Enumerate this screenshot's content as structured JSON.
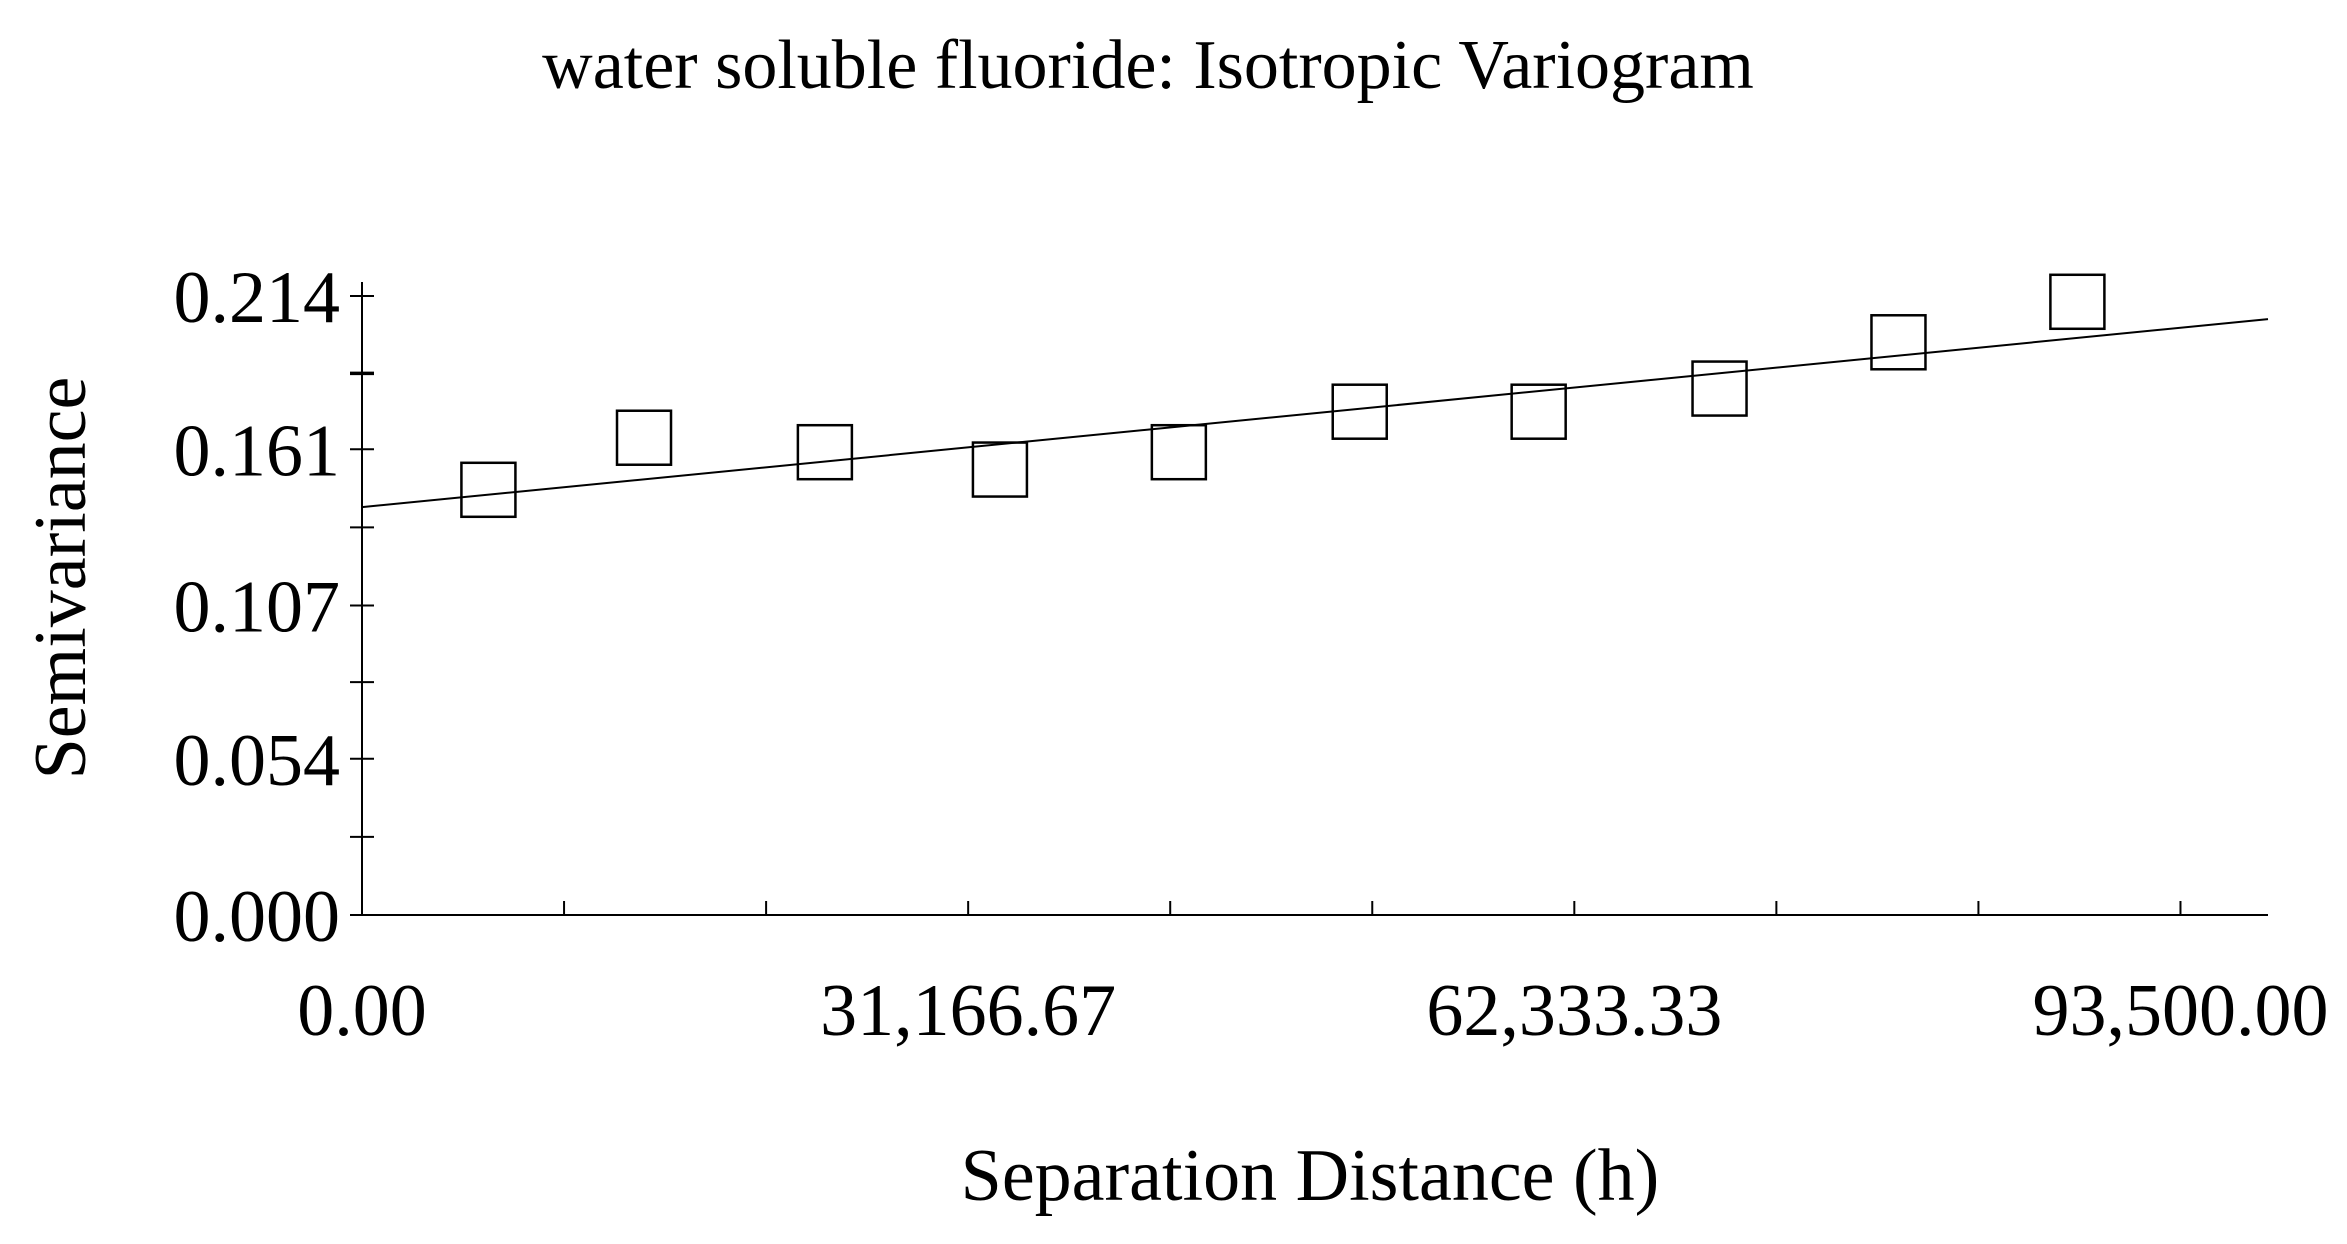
{
  "chart_data": {
    "type": "scatter",
    "title": "water soluble fluoride: Isotropic Variogram",
    "xlabel": "Separation Distance (h)",
    "ylabel": "Semivariance",
    "xlim": [
      0,
      98000
    ],
    "ylim": [
      0,
      0.214
    ],
    "x_ticks": [
      0,
      31166.67,
      62333.33,
      93500.0
    ],
    "x_tick_labels": [
      "0.00",
      "31,166.67",
      "62,333.33",
      "93,500.00"
    ],
    "y_ticks": [
      0,
      0.054,
      0.107,
      0.161,
      0.214
    ],
    "y_tick_labels": [
      "0.000",
      "0.054",
      "0.107",
      "0.161",
      "0.214"
    ],
    "grid": false,
    "series": [
      {
        "type": "scatter",
        "marker": "open-square",
        "x": [
          6500,
          14500,
          23800,
          32800,
          42000,
          51300,
          60500,
          69800,
          79000,
          88200
        ],
        "y": [
          0.147,
          0.165,
          0.16,
          0.154,
          0.16,
          0.174,
          0.174,
          0.182,
          0.198,
          0.212
        ]
      },
      {
        "type": "line",
        "x": [
          0,
          98000
        ],
        "y": [
          0.141,
          0.206
        ]
      }
    ]
  }
}
